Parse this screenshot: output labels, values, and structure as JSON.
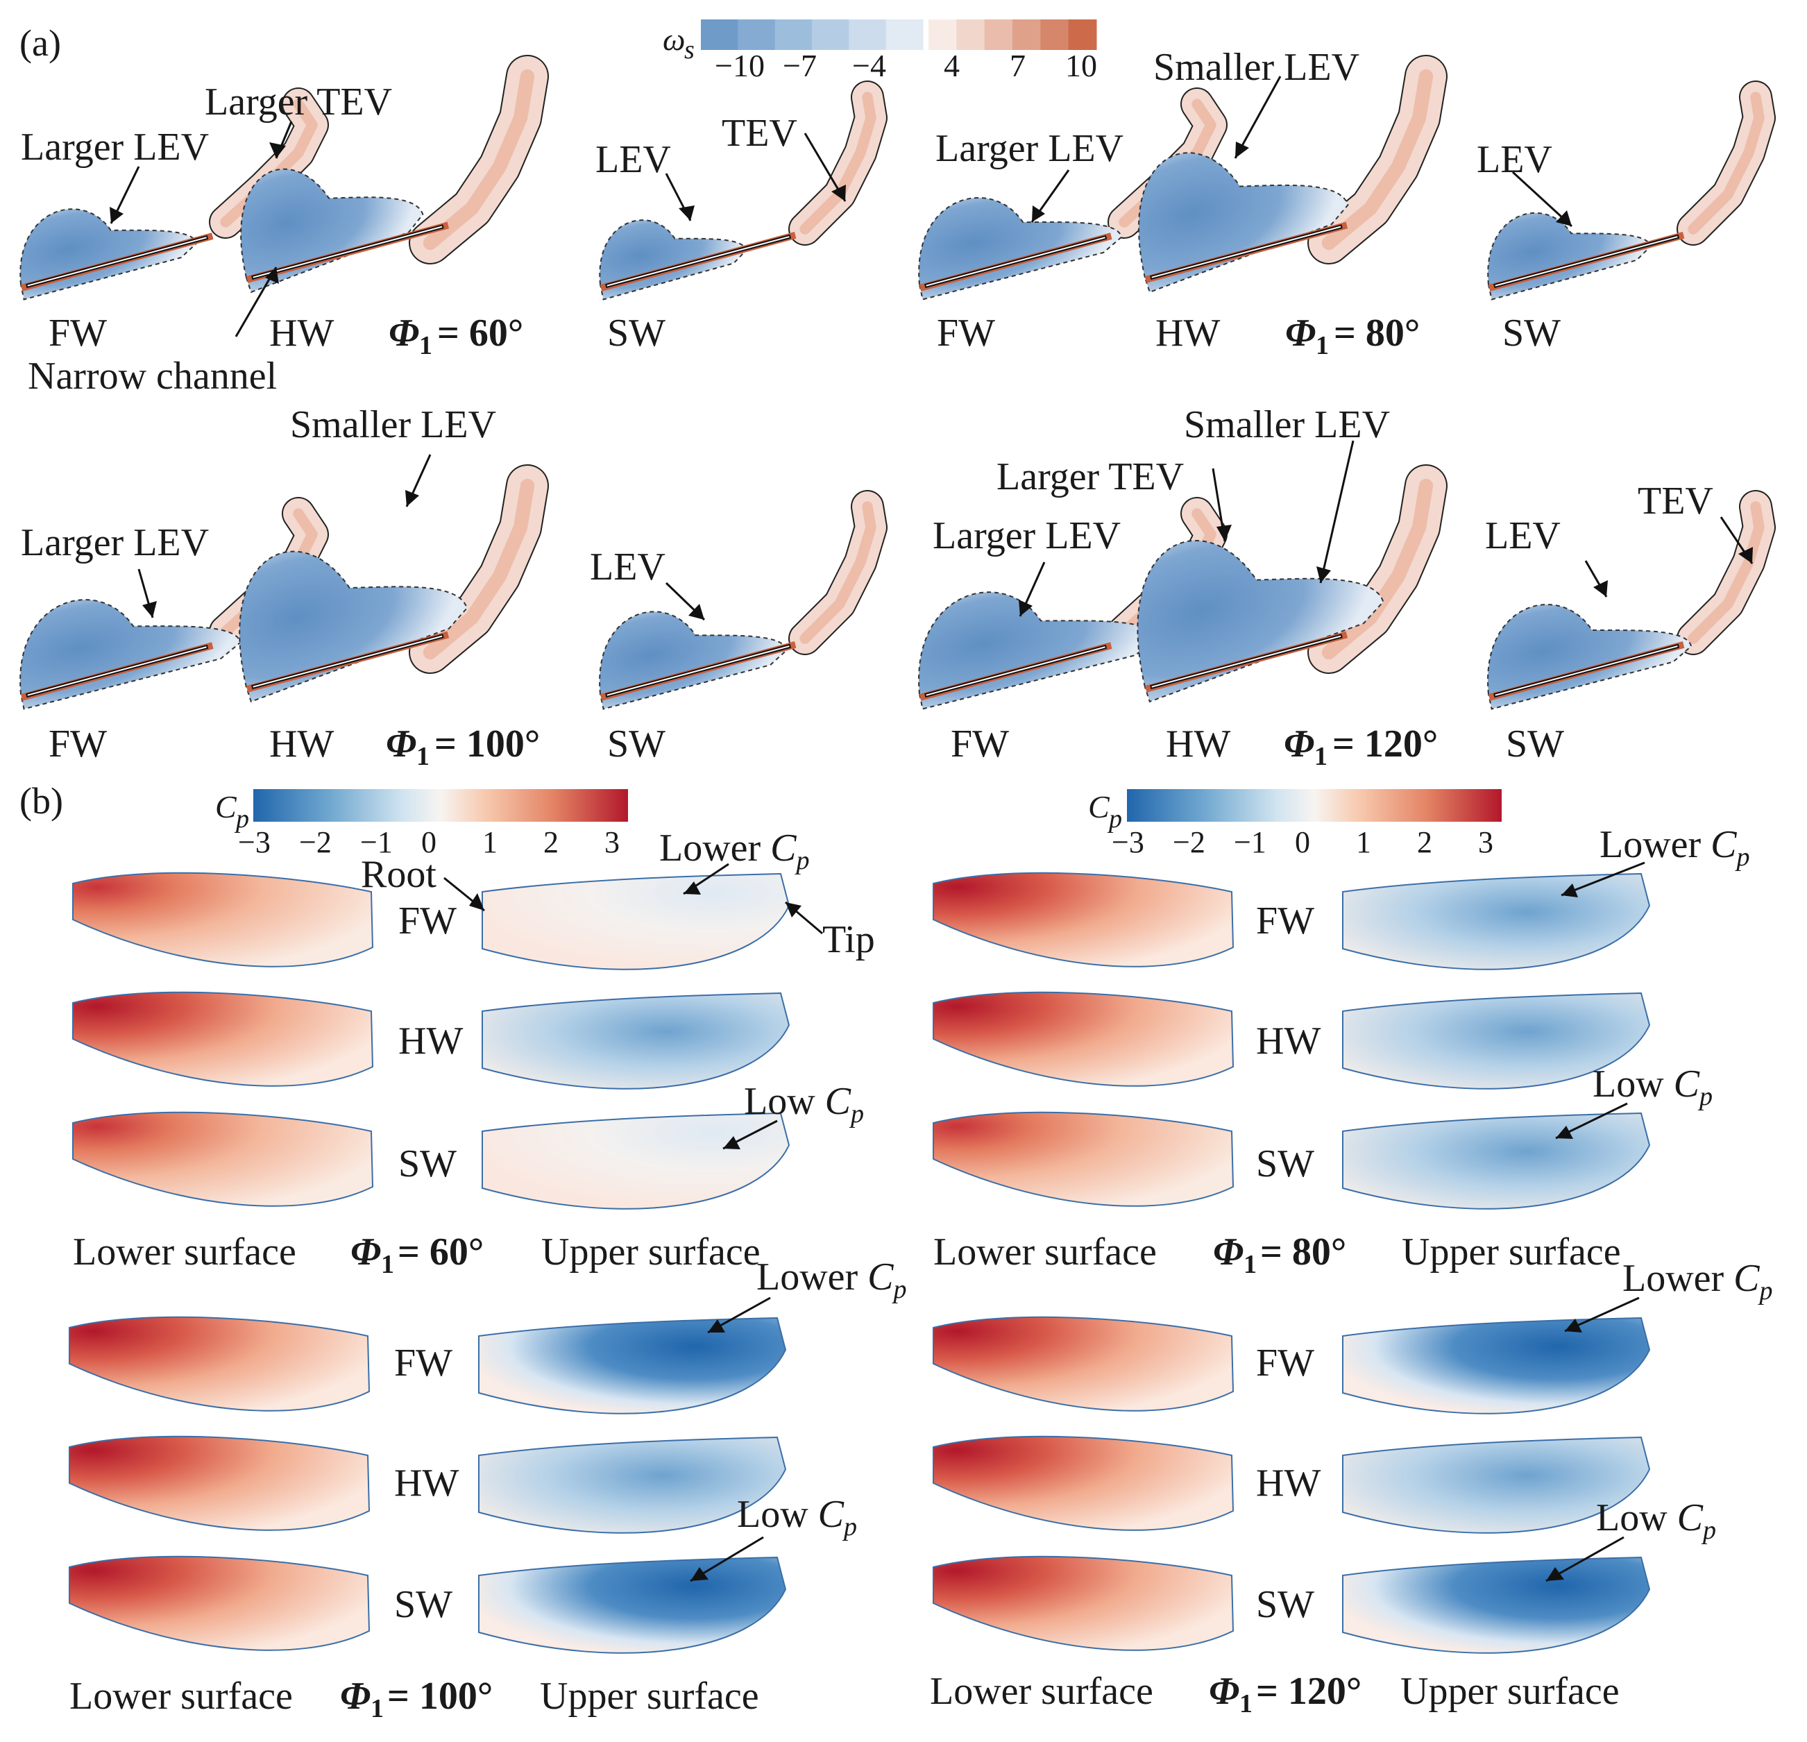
{
  "figure": {
    "panel_a_letter": "(a)",
    "panel_b_letter": "(b)",
    "vorticity_bar": {
      "symbol": "ω",
      "symbol_sub": "s",
      "ticks": [
        "−10",
        "−7",
        "−4",
        "4",
        "7",
        "10"
      ],
      "neg_colors": [
        "#6f9bc9",
        "#85abd3",
        "#9dbddc",
        "#b5cde4",
        "#cddcec",
        "#e2eaf4"
      ],
      "pos_colors": [
        "#f8ebe6",
        "#f1d6cc",
        "#e9bcab",
        "#e0a18b",
        "#d6866a",
        "#cc6a4a"
      ]
    },
    "pressure_bar": {
      "symbol": "C",
      "symbol_sub": "p",
      "ticks": [
        "−3",
        "−2",
        "−1",
        "0",
        "1",
        "2",
        "3"
      ]
    },
    "colors": {
      "vortex_neg": "#6f9bcb",
      "vortex_neg_light": "#cfe0ef",
      "vortex_pos": "#f3d9cf",
      "vortex_pos_dark": "#c9603f",
      "cp_red": "#b31b2c",
      "cp_blue": "#2166ac"
    },
    "vortex_labels": {
      "fw": "FW",
      "hw": "HW",
      "sw": "SW"
    },
    "annotations_a": {
      "p60": [
        "Larger TEV",
        "Larger LEV",
        "LEV",
        "TEV",
        "Narrow channel"
      ],
      "p80": [
        "Smaller LEV",
        "Larger LEV",
        "LEV"
      ],
      "p100": [
        "Smaller LEV",
        "Larger LEV",
        "LEV"
      ],
      "p120": [
        "Smaller LEV",
        "Larger TEV",
        "Larger LEV",
        "LEV",
        "TEV"
      ]
    },
    "phi_label": {
      "symbol": "Φ",
      "sub": "1",
      "angles": [
        "= 60°",
        "= 80°",
        "= 100°",
        "= 120°"
      ]
    },
    "surface_labels": {
      "lower": "Lower surface",
      "upper": "Upper surface"
    },
    "annotations_b": {
      "root": "Root",
      "tip": "Tip",
      "lower_cp": "Lower ",
      "low_cp": "Low ",
      "cp_symbol": "C",
      "cp_sub": "p"
    }
  }
}
